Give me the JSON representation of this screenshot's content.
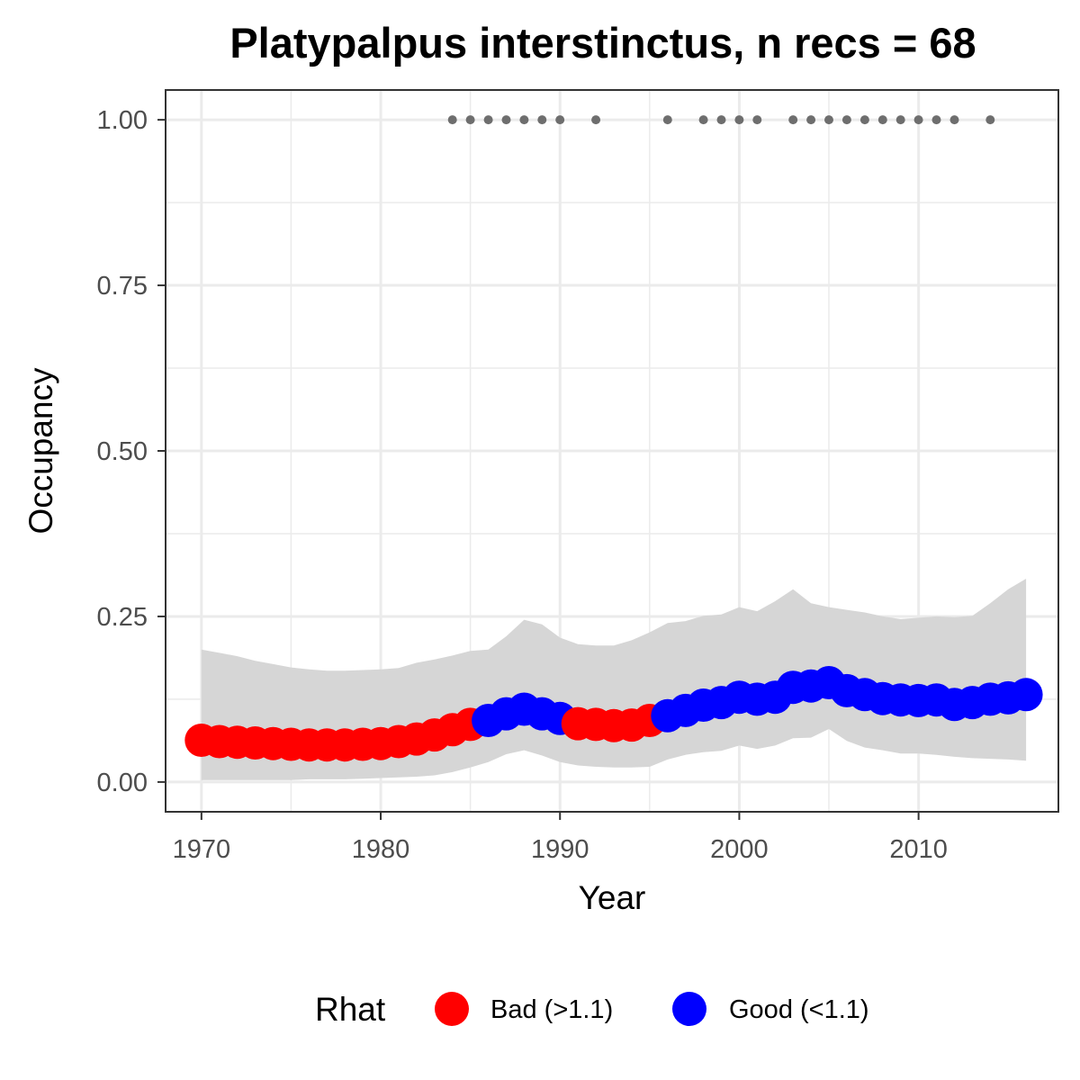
{
  "chart_data": {
    "type": "line",
    "title": "Platypalpus interstinctus, n recs = 68",
    "xlabel": "Year",
    "ylabel": "Occupancy",
    "xlim": [
      1968,
      2017.8
    ],
    "ylim": [
      -0.045,
      1.045
    ],
    "x_ticks": [
      1970,
      1980,
      1990,
      2000,
      2010
    ],
    "x_tick_labels": [
      "1970",
      "1980",
      "1990",
      "2000",
      "2010"
    ],
    "y_ticks": [
      0,
      0.25,
      0.5,
      0.75,
      1.0
    ],
    "y_tick_labels": [
      "0.00",
      "0.25",
      "0.50",
      "0.75",
      "1.00"
    ],
    "grid": true,
    "legend": {
      "title": "Rhat",
      "position": "bottom",
      "entries": [
        {
          "label": "Bad (>1.1)",
          "color": "#ff0000"
        },
        {
          "label": "Good (<1.1)",
          "color": "#0000ff"
        }
      ]
    },
    "colors": {
      "bad": "#ff0000",
      "good": "#0000ff",
      "ribbon": "#d6d6d6",
      "record_points": "#6e6e6e"
    },
    "occupancy": {
      "x": [
        1970,
        1971,
        1972,
        1973,
        1974,
        1975,
        1976,
        1977,
        1978,
        1979,
        1980,
        1981,
        1982,
        1983,
        1984,
        1985,
        1986,
        1987,
        1988,
        1989,
        1990,
        1991,
        1992,
        1993,
        1994,
        1995,
        1996,
        1997,
        1998,
        1999,
        2000,
        2001,
        2002,
        2003,
        2004,
        2005,
        2006,
        2007,
        2008,
        2009,
        2010,
        2011,
        2012,
        2013,
        2014,
        2015,
        2016
      ],
      "y": [
        0.063,
        0.061,
        0.06,
        0.059,
        0.058,
        0.057,
        0.056,
        0.056,
        0.056,
        0.057,
        0.058,
        0.061,
        0.065,
        0.071,
        0.079,
        0.087,
        0.093,
        0.103,
        0.11,
        0.103,
        0.096,
        0.088,
        0.087,
        0.085,
        0.086,
        0.093,
        0.1,
        0.108,
        0.116,
        0.12,
        0.128,
        0.125,
        0.128,
        0.143,
        0.145,
        0.15,
        0.138,
        0.132,
        0.126,
        0.124,
        0.123,
        0.124,
        0.117,
        0.12,
        0.125,
        0.127,
        0.132
      ],
      "rhat": [
        "Bad",
        "Bad",
        "Bad",
        "Bad",
        "Bad",
        "Bad",
        "Bad",
        "Bad",
        "Bad",
        "Bad",
        "Bad",
        "Bad",
        "Bad",
        "Bad",
        "Bad",
        "Bad",
        "Good",
        "Good",
        "Good",
        "Good",
        "Good",
        "Bad",
        "Bad",
        "Bad",
        "Bad",
        "Bad",
        "Good",
        "Good",
        "Good",
        "Good",
        "Good",
        "Good",
        "Good",
        "Good",
        "Good",
        "Good",
        "Good",
        "Good",
        "Good",
        "Good",
        "Good",
        "Good",
        "Good",
        "Good",
        "Good",
        "Good",
        "Good"
      ]
    },
    "credible_interval": {
      "x": [
        1970,
        1971,
        1972,
        1973,
        1974,
        1975,
        1976,
        1977,
        1978,
        1979,
        1980,
        1981,
        1982,
        1983,
        1984,
        1985,
        1986,
        1987,
        1988,
        1989,
        1990,
        1991,
        1992,
        1993,
        1994,
        1995,
        1996,
        1997,
        1998,
        1999,
        2000,
        2001,
        2002,
        2003,
        2004,
        2005,
        2006,
        2007,
        2008,
        2009,
        2010,
        2011,
        2012,
        2013,
        2014,
        2015,
        2016
      ],
      "upper": [
        0.2,
        0.195,
        0.19,
        0.183,
        0.178,
        0.173,
        0.17,
        0.168,
        0.168,
        0.169,
        0.17,
        0.172,
        0.18,
        0.185,
        0.191,
        0.198,
        0.2,
        0.22,
        0.245,
        0.238,
        0.218,
        0.208,
        0.206,
        0.206,
        0.214,
        0.226,
        0.24,
        0.243,
        0.251,
        0.253,
        0.264,
        0.258,
        0.273,
        0.291,
        0.27,
        0.264,
        0.26,
        0.256,
        0.25,
        0.246,
        0.248,
        0.25,
        0.249,
        0.251,
        0.27,
        0.291,
        0.307
      ],
      "lower": [
        0.003,
        0.003,
        0.003,
        0.003,
        0.003,
        0.003,
        0.004,
        0.004,
        0.004,
        0.005,
        0.006,
        0.007,
        0.008,
        0.01,
        0.015,
        0.022,
        0.03,
        0.042,
        0.048,
        0.04,
        0.03,
        0.025,
        0.023,
        0.022,
        0.022,
        0.023,
        0.034,
        0.041,
        0.045,
        0.047,
        0.055,
        0.05,
        0.055,
        0.066,
        0.067,
        0.08,
        0.062,
        0.052,
        0.048,
        0.043,
        0.043,
        0.041,
        0.038,
        0.036,
        0.035,
        0.034,
        0.032
      ]
    },
    "records": {
      "x": [
        1984,
        1985,
        1986,
        1987,
        1988,
        1989,
        1990,
        1992,
        1996,
        1998,
        1999,
        2000,
        2001,
        2003,
        2004,
        2005,
        2006,
        2007,
        2008,
        2009,
        2010,
        2011,
        2012,
        2014
      ],
      "y": 1.0
    }
  }
}
